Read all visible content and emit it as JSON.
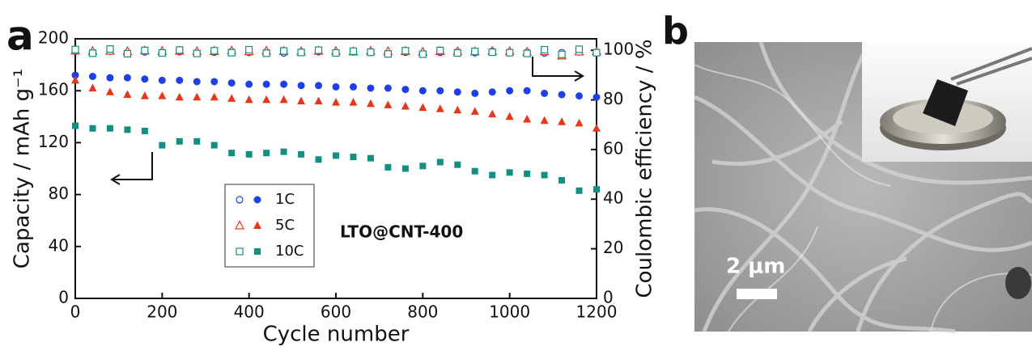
{
  "panel_labels": [
    "a",
    "b"
  ],
  "scale_bar_label": "2 μm",
  "chart_data": {
    "type": "scatter",
    "annotation": "LTO@CNT-400",
    "xlabel": "Cycle number",
    "ylabel": "Capacity / mAh g⁻¹",
    "y2label": "Coulombic efficiency / %",
    "xlim": [
      0,
      1200
    ],
    "xticks": [
      0,
      200,
      400,
      600,
      800,
      1000,
      1200
    ],
    "ylim": [
      0,
      200
    ],
    "yticks": [
      0,
      40,
      80,
      120,
      160,
      200
    ],
    "y2lim": [
      0,
      104.6
    ],
    "y2ticks": [
      0,
      20,
      40,
      60,
      80,
      100
    ],
    "x": [
      0,
      40,
      80,
      120,
      160,
      200,
      240,
      280,
      320,
      360,
      400,
      440,
      480,
      520,
      560,
      600,
      640,
      680,
      720,
      760,
      800,
      840,
      880,
      920,
      960,
      1000,
      1040,
      1080,
      1120,
      1160,
      1200
    ],
    "series": [
      {
        "name": "1C",
        "color": "#1f3fe8",
        "marker": "circle",
        "values": [
          172,
          171,
          170,
          170,
          169,
          168,
          168,
          167,
          167,
          166,
          165,
          165,
          165,
          164,
          164,
          163,
          163,
          162,
          162,
          161,
          160,
          160,
          159,
          158,
          159,
          160,
          160,
          158,
          157,
          156,
          155
        ]
      },
      {
        "name": "5C",
        "color": "#e8361a",
        "marker": "triangle",
        "values": [
          168,
          162,
          159,
          157,
          156,
          156,
          155,
          155,
          155,
          154,
          153,
          153,
          153,
          152,
          152,
          151,
          151,
          150,
          149,
          148,
          147,
          146,
          145,
          144,
          142,
          140,
          138,
          137,
          136,
          135,
          131
        ]
      },
      {
        "name": "10C",
        "color": "#138f82",
        "marker": "square",
        "values": [
          133,
          131,
          131,
          130,
          129,
          118,
          121,
          121,
          118,
          112,
          111,
          112,
          113,
          111,
          107,
          110,
          109,
          108,
          101,
          100,
          102,
          105,
          103,
          98,
          95,
          97,
          96,
          95,
          91,
          83,
          84
        ]
      },
      {
        "color": "#1f3fe8",
        "marker": "circle",
        "axis": "y2",
        "values": [
          99.5,
          99.2,
          99.6,
          99.0,
          99.3,
          99.1,
          99.4,
          99.0,
          99.2,
          99.5,
          99.1,
          99.3,
          98.9,
          99.2,
          99.4,
          99.0,
          99.3,
          99.1,
          98.8,
          99.2,
          98.7,
          99.1,
          99.3,
          99.0,
          99.6,
          99.1,
          99.2,
          98.9,
          99.0,
          99.3,
          99.1
        ]
      },
      {
        "color": "#e8361a",
        "marker": "triangle",
        "axis": "y2",
        "values": [
          99.8,
          99.6,
          99.7,
          99.5,
          99.8,
          99.6,
          99.7,
          99.5,
          99.6,
          99.8,
          99.5,
          99.7,
          99.6,
          99.5,
          99.7,
          99.6,
          99.4,
          99.7,
          99.5,
          99.6,
          99.3,
          99.6,
          99.5,
          99.4,
          99.6,
          99.5,
          99.3,
          99.5,
          97.8,
          99.4,
          99.5
        ]
      },
      {
        "color": "#138f82",
        "marker": "square",
        "axis": "y2",
        "values": [
          100.3,
          98.8,
          100.5,
          98.6,
          99.9,
          98.9,
          100.1,
          98.7,
          99.8,
          99.0,
          100.2,
          98.8,
          99.7,
          99.1,
          100.0,
          98.9,
          99.6,
          99.2,
          98.5,
          99.8,
          98.4,
          99.9,
          98.9,
          99.5,
          99.2,
          99.0,
          98.7,
          100.2,
          98.3,
          100.4,
          99.0
        ]
      }
    ]
  }
}
